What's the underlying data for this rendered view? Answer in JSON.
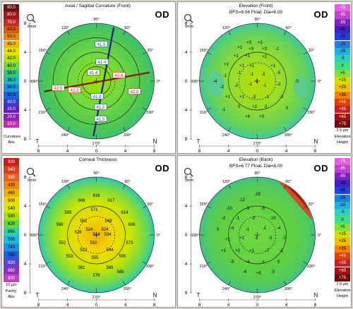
{
  "panels": [
    {
      "id": "axial",
      "title": "Axial / Sagittal Curvature (Front)",
      "subtitle": "",
      "eye": "OD",
      "size_label": "9mm",
      "temporal": "T",
      "nasal": "N",
      "scale_side": "left",
      "scale_values": [
        "90.0",
        "80.0",
        "70.0",
        "60.0",
        "50.0",
        "45.0",
        "44.0",
        "42.0",
        "40.0",
        "38.0",
        "36.0",
        "34.0",
        "32.0",
        "30.0",
        "25.0",
        "20.0",
        "10.0"
      ],
      "scale_colors": [
        "#6a0f0f",
        "#a01818",
        "#c62a2a",
        "#d85a10",
        "#e88a00",
        "#f0b800",
        "#e8e000",
        "#b8e000",
        "#70d840",
        "#30c878",
        "#20b8b0",
        "#2090d8",
        "#2060e0",
        "#3040d0",
        "#6020c0",
        "#9020b0",
        "#c030b0"
      ],
      "scale_step": "",
      "scale_footer": [
        "Curvature",
        "Abs"
      ],
      "values": [
        "41.5",
        "41.4",
        "41.4",
        "42.6",
        "42.5",
        "42.3",
        "42.5",
        "41.9",
        "41.5",
        "41.5"
      ],
      "bg": "#58c850"
    },
    {
      "id": "elev-front",
      "title": "Elevation (Front)",
      "subtitle": "BFS=8.04 Float, Dia=8.00",
      "eye": "OD",
      "size_label": "9mm",
      "temporal": "T",
      "nasal": "N",
      "scale_side": "right",
      "scale_values": [
        "-75",
        "-65",
        "-55",
        "-45",
        "-35",
        "-25",
        "-15",
        "-5",
        "0",
        "+5",
        "+15",
        "+25",
        "+35",
        "+45",
        "+55",
        "+65",
        "+75"
      ],
      "scale_colors": [
        "#e060e0",
        "#c040d0",
        "#8020c0",
        "#4020c0",
        "#2040e0",
        "#2080e0",
        "#20b0e0",
        "#30d0c0",
        "#40e080",
        "#80e040",
        "#d0e000",
        "#f0c000",
        "#f08000",
        "#e04000",
        "#c02020",
        "#a01010",
        "#700808"
      ],
      "scale_step": "2.5 µm",
      "scale_footer": [
        "Elevation",
        "Height"
      ],
      "values": [
        "+3",
        "+2",
        "+1",
        "+3",
        "+3",
        "+1",
        "+1",
        "+2",
        "+2",
        "+1",
        "+1",
        "+1",
        "-1",
        "-1",
        "-1",
        "-3",
        "-5",
        "-2",
        "-2",
        "-1",
        "-1",
        "-2",
        "+1",
        "+1",
        "-2",
        "-1",
        "-3",
        "0",
        "+2",
        "0",
        "+4",
        "+3",
        "-4",
        "-5",
        "-1",
        "0",
        "-1",
        "-1"
      ],
      "bg": "#80d840"
    },
    {
      "id": "pachy",
      "title": "Corneal Thickness",
      "subtitle": "",
      "eye": "OD",
      "size_label": "9mm",
      "temporal": "T",
      "nasal": "N",
      "scale_side": "left",
      "scale_values": [
        "300",
        "340",
        "380",
        "420",
        "460",
        "500",
        "540",
        "580",
        "620",
        "660",
        "700",
        "740",
        "780",
        "820",
        "860",
        "900"
      ],
      "scale_colors": [
        "#c02020",
        "#d84020",
        "#e86020",
        "#f08818",
        "#f0b000",
        "#f0d800",
        "#d8e800",
        "#a8e000",
        "#60d840",
        "#30d0a0",
        "#20b8d8",
        "#2090e0",
        "#2060e0",
        "#6040d0",
        "#9030c0",
        "#c040c0"
      ],
      "scale_step": "10 µm",
      "scale_footer": [
        "Pachy.",
        "Abs"
      ],
      "values": [
        "618",
        "606",
        "617",
        "589",
        "571",
        "614",
        "566",
        "551",
        "569",
        "606",
        "524",
        "524",
        "528",
        "514",
        "534",
        "552",
        "510",
        "573",
        "522",
        "544",
        "553",
        "555",
        "595",
        "561",
        "565",
        "576",
        "585"
      ],
      "bg": "#f0e000"
    },
    {
      "id": "elev-back",
      "title": "Elevation (Back)",
      "subtitle": "BFS=6.77 Float, Dia=8.00",
      "eye": "OD",
      "size_label": "9mm",
      "temporal": "T",
      "nasal": "N",
      "scale_side": "right",
      "scale_values": [
        "-75",
        "-65",
        "-55",
        "-45",
        "-35",
        "-25",
        "-15",
        "-5",
        "0",
        "+5",
        "+15",
        "+25",
        "+35",
        "+45",
        "+55",
        "+65",
        "+75"
      ],
      "scale_colors": [
        "#e060e0",
        "#c040d0",
        "#8020c0",
        "#4020c0",
        "#2040e0",
        "#2080e0",
        "#20b0e0",
        "#30d0c0",
        "#40e080",
        "#80e040",
        "#d0e000",
        "#f0c000",
        "#f08000",
        "#e04000",
        "#c02020",
        "#a01010",
        "#700808"
      ],
      "scale_step": "2.5 µm",
      "scale_footer": [
        "Elevation",
        "Height"
      ],
      "values": [
        "-15",
        "-12",
        "-10",
        "-6",
        "-5",
        "-2",
        "-1",
        "-3",
        "-10",
        "0",
        "-4",
        "-1",
        "-1",
        "-4",
        "+1",
        "+1",
        "-1",
        "-3",
        "-2",
        "+1",
        "+2",
        "+1",
        "-7",
        "-1",
        "-5",
        "-4",
        "-1",
        "0",
        "-4",
        "+5",
        "-5"
      ],
      "bg": "#58c850"
    }
  ],
  "axes": {
    "angles": [
      "90°",
      "60°",
      "30°",
      "0°",
      "330°",
      "300°",
      "270°",
      "240°",
      "210°",
      "180°",
      "150°",
      "120°"
    ],
    "mm_ticks": [
      "8",
      "4",
      "0",
      "4",
      "8"
    ],
    "y_ticks": [
      "8",
      "4",
      "0",
      "4",
      "8"
    ]
  }
}
